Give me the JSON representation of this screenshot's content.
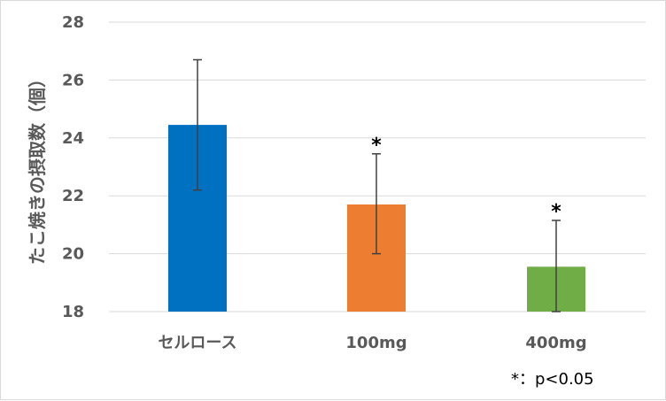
{
  "chart_data": {
    "type": "bar",
    "categories": [
      "セルロース",
      "100mg",
      "400mg"
    ],
    "values": [
      24.45,
      21.7,
      19.55
    ],
    "error_upper": [
      26.7,
      23.45,
      21.15
    ],
    "error_lower": [
      22.2,
      20.0,
      18.0
    ],
    "significance": [
      "",
      "*",
      "*"
    ],
    "colors": [
      "#0070c0",
      "#ed7d31",
      "#70ad47"
    ],
    "ylabel": "たこ焼きの摂取数（個）",
    "xlabel": "",
    "title": "",
    "ylim": [
      18,
      28
    ],
    "yticks": [
      18,
      20,
      22,
      24,
      26,
      28
    ],
    "grid": true,
    "annotation": "*：p<0.05"
  }
}
